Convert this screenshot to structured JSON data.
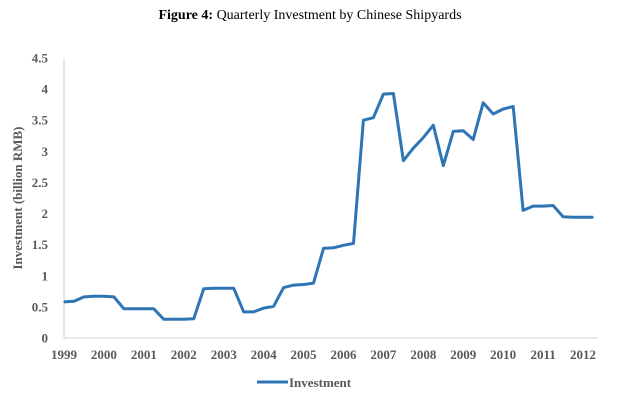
{
  "figure": {
    "lead": "Figure 4:",
    "title": "Quarterly Investment by Chinese Shipyards"
  },
  "chart_data": {
    "type": "line",
    "title": "Quarterly Investment by Chinese Shipyards",
    "xlabel": "",
    "ylabel": "Investment (billion RMB)",
    "ylim": [
      0,
      4.5
    ],
    "yticks": [
      "0",
      "0.5",
      "1",
      "1.5",
      "2",
      "2.5",
      "3",
      "3.5",
      "4",
      "4.5"
    ],
    "xlim": [
      1999.0,
      2012.375
    ],
    "xticks": [
      "1999",
      "2000",
      "2001",
      "2002",
      "2003",
      "2004",
      "2005",
      "2006",
      "2007",
      "2008",
      "2009",
      "2010",
      "2011",
      "2012"
    ],
    "grid": false,
    "legend": "bottom",
    "color": "#2E75B6",
    "series": [
      {
        "name": "Investment",
        "points": [
          [
            1999.0,
            0.58
          ],
          [
            1999.25,
            0.59
          ],
          [
            1999.5,
            0.66
          ],
          [
            1999.75,
            0.67
          ],
          [
            2000.0,
            0.67
          ],
          [
            2000.25,
            0.66
          ],
          [
            2000.5,
            0.47
          ],
          [
            2000.75,
            0.47
          ],
          [
            2001.0,
            0.47
          ],
          [
            2001.25,
            0.47
          ],
          [
            2001.5,
            0.3
          ],
          [
            2001.75,
            0.3
          ],
          [
            2002.0,
            0.3
          ],
          [
            2002.25,
            0.31
          ],
          [
            2002.5,
            0.79
          ],
          [
            2002.75,
            0.8
          ],
          [
            2003.0,
            0.8
          ],
          [
            2003.25,
            0.8
          ],
          [
            2003.5,
            0.42
          ],
          [
            2003.75,
            0.42
          ],
          [
            2004.0,
            0.48
          ],
          [
            2004.25,
            0.51
          ],
          [
            2004.5,
            0.81
          ],
          [
            2004.75,
            0.85
          ],
          [
            2005.0,
            0.86
          ],
          [
            2005.25,
            0.88
          ],
          [
            2005.5,
            1.44
          ],
          [
            2005.75,
            1.45
          ],
          [
            2006.0,
            1.49
          ],
          [
            2006.25,
            1.52
          ],
          [
            2006.5,
            3.5
          ],
          [
            2006.75,
            3.54
          ],
          [
            2007.0,
            3.92
          ],
          [
            2007.25,
            3.93
          ],
          [
            2007.5,
            2.85
          ],
          [
            2007.75,
            3.05
          ],
          [
            2008.0,
            3.22
          ],
          [
            2008.25,
            3.42
          ],
          [
            2008.5,
            2.77
          ],
          [
            2008.75,
            3.32
          ],
          [
            2009.0,
            3.33
          ],
          [
            2009.25,
            3.19
          ],
          [
            2009.5,
            3.78
          ],
          [
            2009.75,
            3.6
          ],
          [
            2010.0,
            3.68
          ],
          [
            2010.25,
            3.72
          ],
          [
            2010.5,
            2.05
          ],
          [
            2010.75,
            2.12
          ],
          [
            2011.0,
            2.12
          ],
          [
            2011.25,
            2.13
          ],
          [
            2011.5,
            1.95
          ],
          [
            2011.75,
            1.94
          ],
          [
            2012.0,
            1.94
          ],
          [
            2012.25,
            1.94
          ]
        ]
      }
    ]
  }
}
